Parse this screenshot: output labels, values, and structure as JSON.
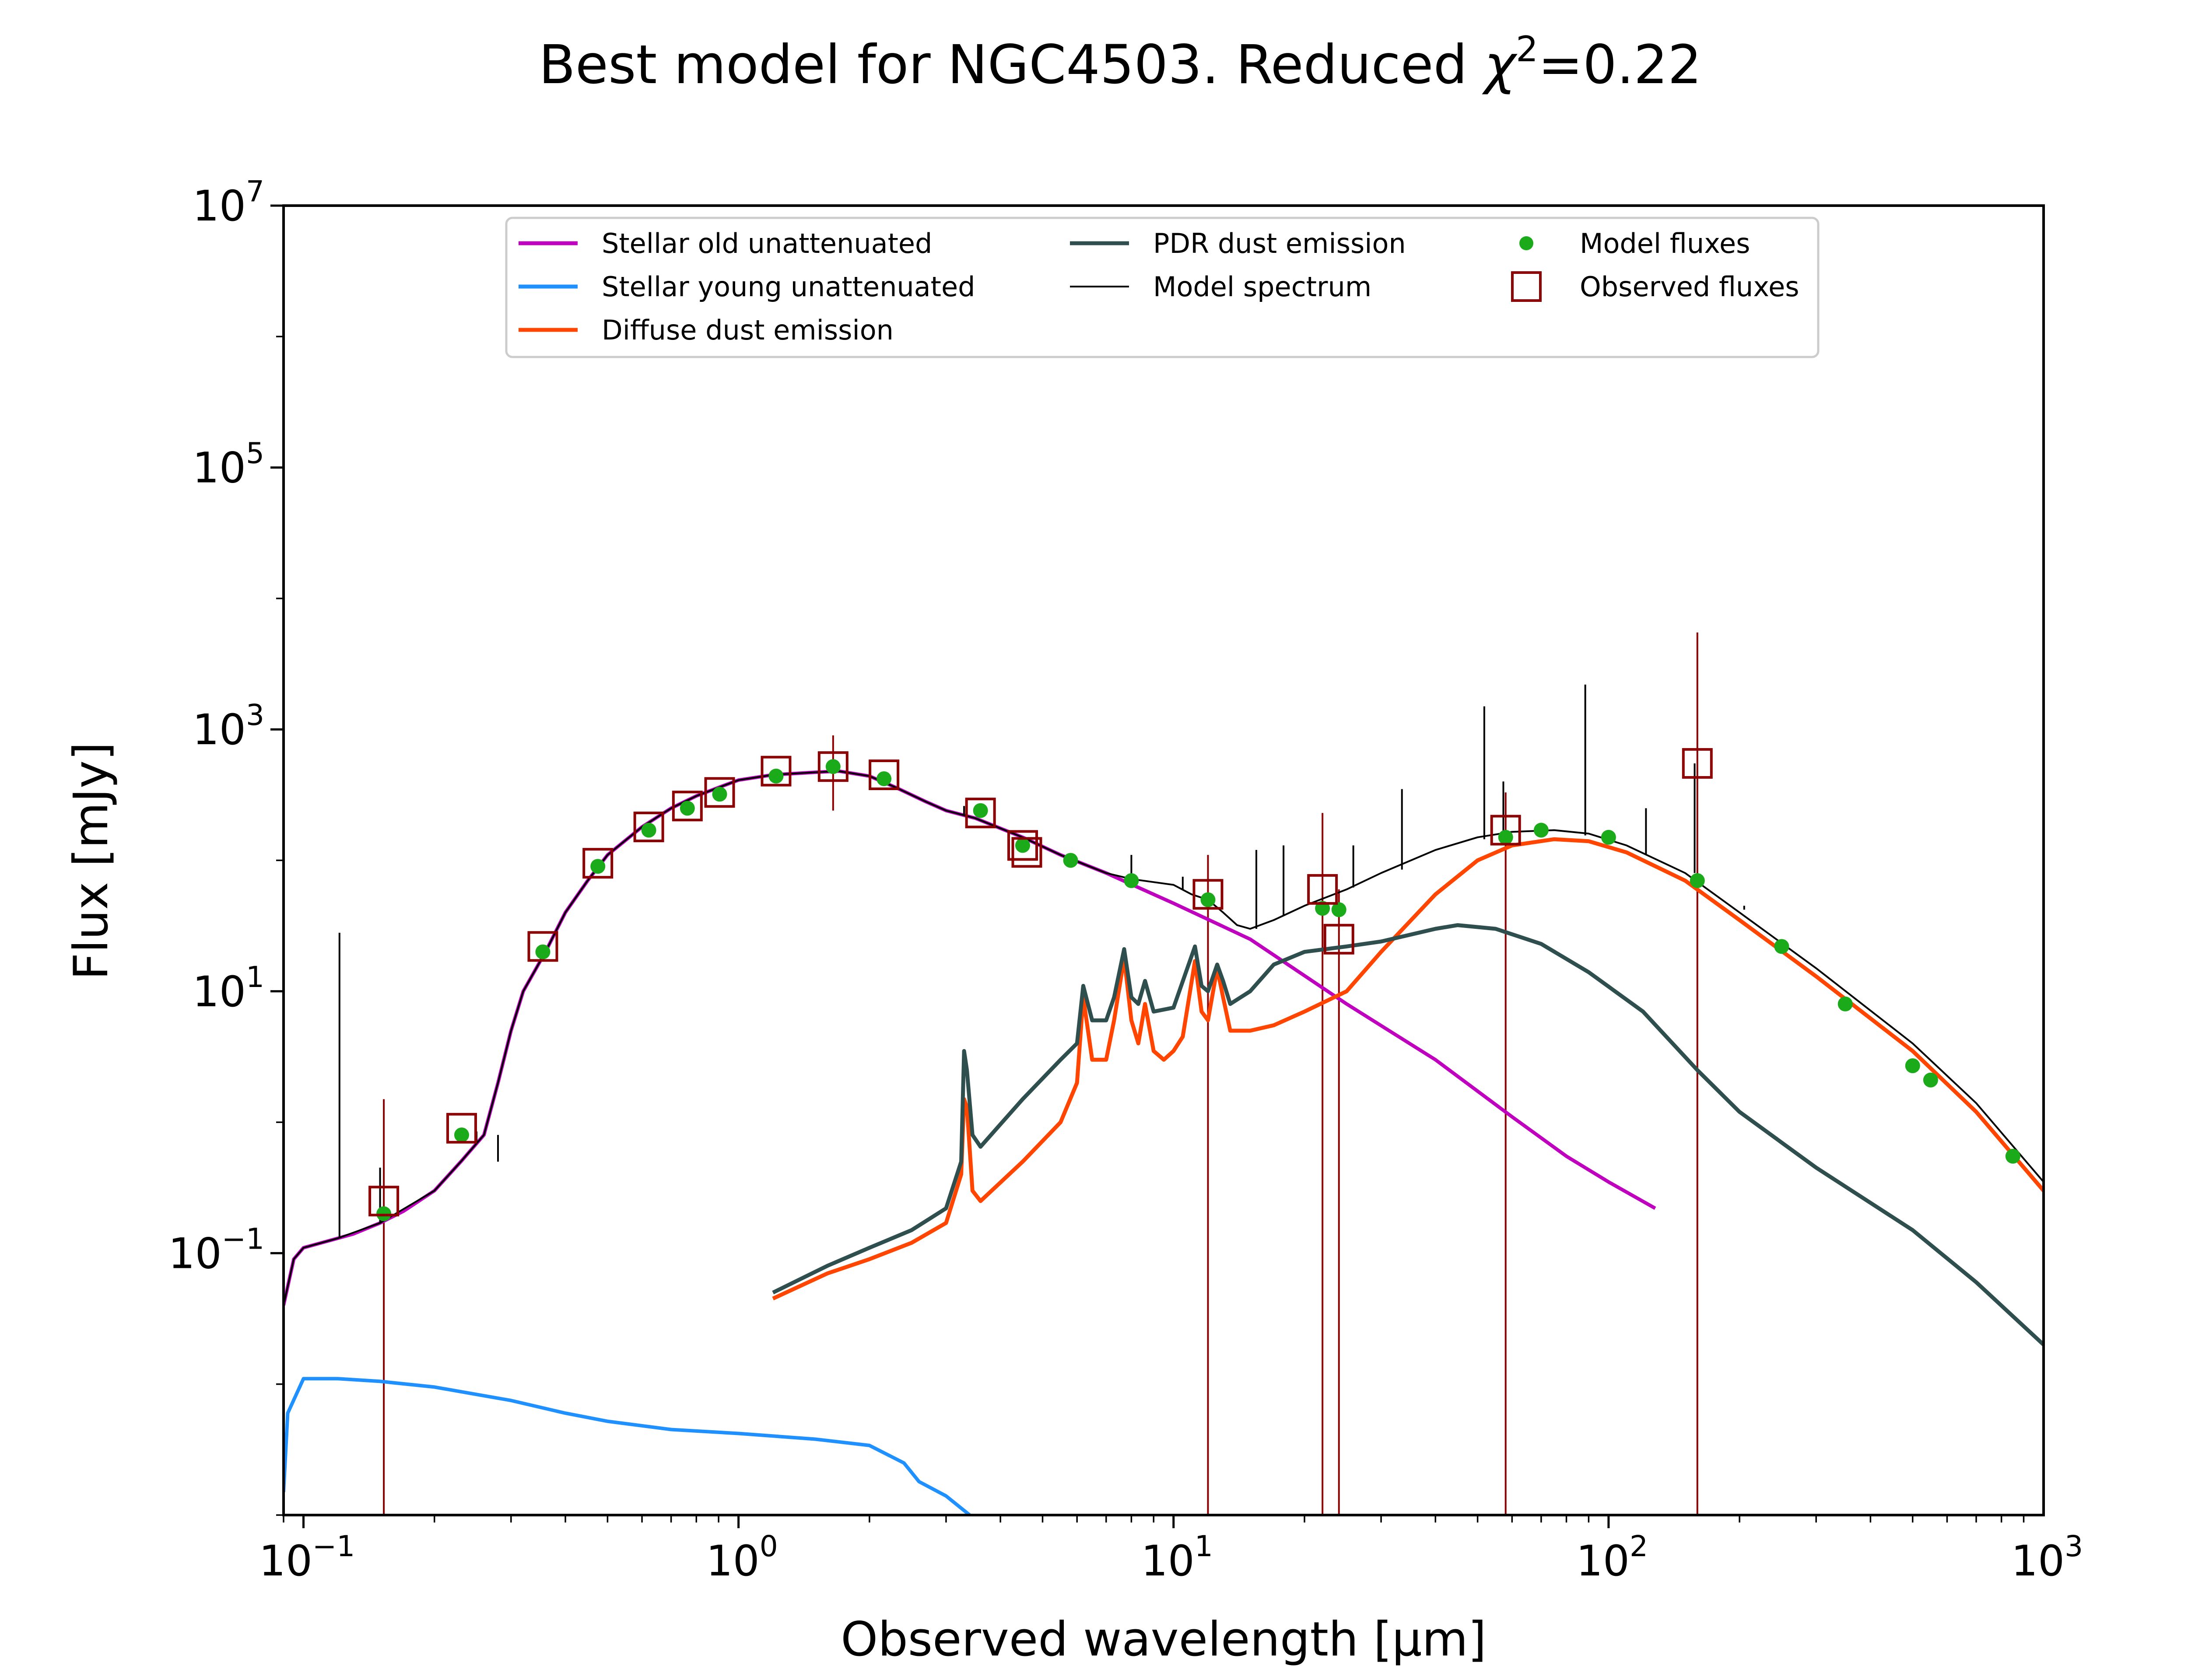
{
  "chart_data": {
    "type": "line",
    "title": "Best model for NGC4503. Reduced χ²=0.22",
    "title_parts": {
      "prefix": "Best model for NGC4503. Reduced ",
      "chi": "χ",
      "sup": "2",
      "suffix": "=0.22"
    },
    "xlabel": "Observed wavelength [μm]",
    "ylabel": "Flux [mJy]",
    "xscale": "log",
    "yscale": "log",
    "xlim": [
      0.09,
      1000
    ],
    "ylim": [
      0.001,
      10000000
    ],
    "xticks": [
      {
        "value": 0.1,
        "base": "10",
        "exp": "−1"
      },
      {
        "value": 1,
        "base": "10",
        "exp": "0"
      },
      {
        "value": 10,
        "base": "10",
        "exp": "1"
      },
      {
        "value": 100,
        "base": "10",
        "exp": "2"
      },
      {
        "value": 1000,
        "base": "10",
        "exp": "3"
      }
    ],
    "yticks": [
      {
        "value": 0.1,
        "base": "10",
        "exp": "−1"
      },
      {
        "value": 10,
        "base": "10",
        "exp": "1"
      },
      {
        "value": 1000,
        "base": "10",
        "exp": "3"
      },
      {
        "value": 100000,
        "base": "10",
        "exp": "5"
      },
      {
        "value": 10000000,
        "base": "10",
        "exp": "7"
      }
    ],
    "legend_position": "top-center",
    "legend": [
      {
        "key": "old",
        "label": "Stellar old unattenuated",
        "kind": "line"
      },
      {
        "key": "young",
        "label": "Stellar young unattenuated",
        "kind": "line"
      },
      {
        "key": "diffuse",
        "label": "Diffuse dust emission",
        "kind": "line"
      },
      {
        "key": "pdr",
        "label": "PDR dust emission",
        "kind": "line"
      },
      {
        "key": "model",
        "label": "Model spectrum",
        "kind": "line"
      },
      {
        "key": "modelfluxes",
        "label": "Model fluxes",
        "kind": "dot"
      },
      {
        "key": "observed",
        "label": "Observed fluxes",
        "kind": "square"
      }
    ],
    "colors": {
      "old": "#bf00bf",
      "young": "#1e90ff",
      "diffuse": "#ff4500",
      "pdr": "#2f4f4f",
      "model": "#000000",
      "modelfluxes": "#1aaa1a",
      "observed": "#8b0000"
    },
    "series": [
      {
        "key": "old",
        "name": "Stellar old unattenuated",
        "points": [
          [
            0.09,
            0.04
          ],
          [
            0.095,
            0.09
          ],
          [
            0.1,
            0.11
          ],
          [
            0.11,
            0.12
          ],
          [
            0.12,
            0.13
          ],
          [
            0.13,
            0.14
          ],
          [
            0.15,
            0.17
          ],
          [
            0.17,
            0.21
          ],
          [
            0.2,
            0.3
          ],
          [
            0.23,
            0.5
          ],
          [
            0.26,
            0.8
          ],
          [
            0.28,
            2
          ],
          [
            0.3,
            5
          ],
          [
            0.32,
            10
          ],
          [
            0.36,
            20
          ],
          [
            0.4,
            40
          ],
          [
            0.45,
            70
          ],
          [
            0.5,
            110
          ],
          [
            0.6,
            180
          ],
          [
            0.7,
            250
          ],
          [
            0.8,
            310
          ],
          [
            0.9,
            360
          ],
          [
            1.0,
            410
          ],
          [
            1.2,
            450
          ],
          [
            1.5,
            470
          ],
          [
            1.7,
            480
          ],
          [
            2.0,
            440
          ],
          [
            2.3,
            360
          ],
          [
            2.7,
            280
          ],
          [
            3.0,
            240
          ],
          [
            3.5,
            210
          ],
          [
            4.5,
            150
          ],
          [
            5.5,
            110
          ],
          [
            7,
            80
          ],
          [
            10,
            47
          ],
          [
            15,
            25
          ],
          [
            25,
            8
          ],
          [
            40,
            3
          ],
          [
            60,
            1.1
          ],
          [
            80,
            0.55
          ],
          [
            100,
            0.35
          ],
          [
            128,
            0.22
          ]
        ]
      },
      {
        "key": "young",
        "name": "Stellar young unattenuated",
        "points": [
          [
            0.09,
            0.0015
          ],
          [
            0.092,
            0.006
          ],
          [
            0.1,
            0.011
          ],
          [
            0.12,
            0.011
          ],
          [
            0.15,
            0.0105
          ],
          [
            0.2,
            0.0095
          ],
          [
            0.3,
            0.0075
          ],
          [
            0.4,
            0.006
          ],
          [
            0.5,
            0.0052
          ],
          [
            0.7,
            0.0045
          ],
          [
            1.0,
            0.0042
          ],
          [
            1.5,
            0.0038
          ],
          [
            2.0,
            0.0034
          ],
          [
            2.4,
            0.0025
          ],
          [
            2.6,
            0.0018
          ],
          [
            3.0,
            0.0014
          ],
          [
            3.4,
            0.001
          ]
        ]
      },
      {
        "key": "diffuse",
        "name": "Diffuse dust emission",
        "points": [
          [
            1.2,
            0.045
          ],
          [
            1.6,
            0.07
          ],
          [
            2.0,
            0.09
          ],
          [
            2.5,
            0.12
          ],
          [
            3.0,
            0.17
          ],
          [
            3.25,
            0.4
          ],
          [
            3.3,
            1.5
          ],
          [
            3.35,
            1.3
          ],
          [
            3.45,
            0.3
          ],
          [
            3.6,
            0.25
          ],
          [
            4.5,
            0.5
          ],
          [
            5.5,
            1.0
          ],
          [
            6.0,
            2.0
          ],
          [
            6.2,
            9
          ],
          [
            6.5,
            3.0
          ],
          [
            7.0,
            3.0
          ],
          [
            7.3,
            6
          ],
          [
            7.7,
            18
          ],
          [
            8.0,
            6
          ],
          [
            8.3,
            4
          ],
          [
            8.6,
            8
          ],
          [
            9,
            3.5
          ],
          [
            9.5,
            3.0
          ],
          [
            10,
            3.5
          ],
          [
            10.5,
            4.5
          ],
          [
            11.2,
            17
          ],
          [
            11.6,
            7
          ],
          [
            12,
            6
          ],
          [
            12.6,
            15
          ],
          [
            13,
            9
          ],
          [
            13.5,
            5
          ],
          [
            15,
            5
          ],
          [
            17,
            5.5
          ],
          [
            20,
            7
          ],
          [
            25,
            10
          ],
          [
            30,
            20
          ],
          [
            40,
            55
          ],
          [
            50,
            100
          ],
          [
            60,
            130
          ],
          [
            75,
            145
          ],
          [
            90,
            140
          ],
          [
            110,
            115
          ],
          [
            150,
            70
          ],
          [
            200,
            35
          ],
          [
            300,
            13
          ],
          [
            500,
            3.5
          ],
          [
            700,
            1.2
          ],
          [
            1000,
            0.3
          ]
        ]
      },
      {
        "key": "pdr",
        "name": "PDR dust emission",
        "points": [
          [
            1.2,
            0.05
          ],
          [
            1.6,
            0.08
          ],
          [
            2.0,
            0.11
          ],
          [
            2.5,
            0.15
          ],
          [
            3.0,
            0.22
          ],
          [
            3.25,
            0.5
          ],
          [
            3.3,
            3.5
          ],
          [
            3.35,
            2.5
          ],
          [
            3.45,
            0.8
          ],
          [
            3.6,
            0.65
          ],
          [
            4.5,
            1.5
          ],
          [
            5.5,
            3
          ],
          [
            6.0,
            4
          ],
          [
            6.2,
            11
          ],
          [
            6.5,
            6
          ],
          [
            7.0,
            6
          ],
          [
            7.3,
            9
          ],
          [
            7.7,
            21
          ],
          [
            8.0,
            9
          ],
          [
            8.3,
            8
          ],
          [
            8.6,
            12
          ],
          [
            9,
            7
          ],
          [
            10,
            7.5
          ],
          [
            11.2,
            22
          ],
          [
            11.6,
            11
          ],
          [
            12,
            10
          ],
          [
            12.6,
            16
          ],
          [
            13,
            12
          ],
          [
            13.5,
            8
          ],
          [
            15,
            10
          ],
          [
            17,
            16
          ],
          [
            20,
            20
          ],
          [
            25,
            22
          ],
          [
            30,
            24
          ],
          [
            40,
            30
          ],
          [
            45,
            32
          ],
          [
            55,
            30
          ],
          [
            70,
            23
          ],
          [
            90,
            14
          ],
          [
            120,
            7
          ],
          [
            160,
            2.5
          ],
          [
            200,
            1.2
          ],
          [
            300,
            0.45
          ],
          [
            500,
            0.15
          ],
          [
            700,
            0.06
          ],
          [
            1000,
            0.02
          ]
        ]
      },
      {
        "key": "model",
        "name": "Model spectrum",
        "points": [
          [
            0.09,
            0.04
          ],
          [
            0.095,
            0.09
          ],
          [
            0.1,
            0.11
          ],
          [
            0.12,
            0.13
          ],
          [
            0.15,
            0.17
          ],
          [
            0.2,
            0.3
          ],
          [
            0.23,
            0.5
          ],
          [
            0.26,
            0.8
          ],
          [
            0.28,
            2
          ],
          [
            0.3,
            5
          ],
          [
            0.32,
            10
          ],
          [
            0.36,
            20
          ],
          [
            0.4,
            40
          ],
          [
            0.45,
            70
          ],
          [
            0.5,
            110
          ],
          [
            0.6,
            180
          ],
          [
            0.7,
            250
          ],
          [
            0.8,
            310
          ],
          [
            0.9,
            360
          ],
          [
            1.0,
            410
          ],
          [
            1.2,
            450
          ],
          [
            1.5,
            470
          ],
          [
            1.7,
            480
          ],
          [
            2.0,
            440
          ],
          [
            2.3,
            360
          ],
          [
            2.7,
            280
          ],
          [
            3.0,
            240
          ],
          [
            3.5,
            210
          ],
          [
            4.5,
            150
          ],
          [
            5.5,
            110
          ],
          [
            7,
            80
          ],
          [
            8,
            72
          ],
          [
            10,
            65
          ],
          [
            11,
            55
          ],
          [
            12,
            50
          ],
          [
            13,
            40
          ],
          [
            14,
            32
          ],
          [
            15,
            30
          ],
          [
            17,
            35
          ],
          [
            20,
            45
          ],
          [
            25,
            60
          ],
          [
            30,
            80
          ],
          [
            40,
            120
          ],
          [
            50,
            150
          ],
          [
            60,
            165
          ],
          [
            75,
            170
          ],
          [
            90,
            160
          ],
          [
            110,
            130
          ],
          [
            150,
            80
          ],
          [
            200,
            40
          ],
          [
            300,
            15
          ],
          [
            500,
            4
          ],
          [
            700,
            1.4
          ],
          [
            1000,
            0.35
          ]
        ]
      },
      {
        "key": "modelfluxes",
        "name": "Model fluxes",
        "points": [
          [
            0.153,
            0.2
          ],
          [
            0.231,
            0.8
          ],
          [
            0.355,
            20
          ],
          [
            0.475,
            90
          ],
          [
            0.622,
            170
          ],
          [
            0.763,
            250
          ],
          [
            0.905,
            320
          ],
          [
            1.22,
            440
          ],
          [
            1.65,
            520
          ],
          [
            2.16,
            420
          ],
          [
            3.6,
            240
          ],
          [
            4.5,
            130
          ],
          [
            5.8,
            100
          ],
          [
            8.0,
            70
          ],
          [
            12,
            50
          ],
          [
            22,
            43
          ],
          [
            24,
            42
          ],
          [
            58,
            150
          ],
          [
            70,
            170
          ],
          [
            100,
            150
          ],
          [
            160,
            70
          ],
          [
            250,
            22
          ],
          [
            350,
            8
          ],
          [
            500,
            2.7
          ],
          [
            550,
            2.1
          ],
          [
            850,
            0.55
          ]
        ]
      },
      {
        "key": "observed",
        "name": "Observed fluxes",
        "points": [
          [
            0.153,
            0.25
          ],
          [
            0.231,
            0.9
          ],
          [
            0.355,
            22
          ],
          [
            0.475,
            95
          ],
          [
            0.622,
            180
          ],
          [
            0.763,
            260
          ],
          [
            0.905,
            330
          ],
          [
            1.22,
            480
          ],
          [
            1.65,
            520
          ],
          [
            2.16,
            450
          ],
          [
            3.6,
            230
          ],
          [
            4.5,
            130
          ],
          [
            4.6,
            115
          ],
          [
            12,
            55
          ],
          [
            22,
            60
          ],
          [
            24,
            25
          ],
          [
            58,
            170
          ],
          [
            160,
            550
          ]
        ]
      }
    ],
    "error_bars": [
      {
        "x": 0.153,
        "low": 0.001,
        "high": 1.5
      },
      {
        "x": 1.65,
        "low": 240,
        "high": 900
      },
      {
        "x": 12,
        "low": 0.001,
        "high": 110
      },
      {
        "x": 22,
        "low": 0.001,
        "high": 230
      },
      {
        "x": 24,
        "low": 0.001,
        "high": 60
      },
      {
        "x": 58,
        "low": 0.001,
        "high": 330
      },
      {
        "x": 160,
        "low": 0.001,
        "high": 5500
      }
    ],
    "emission_lines": [
      {
        "x": 0.121,
        "base": 0.13,
        "top": 28
      },
      {
        "x": 0.15,
        "base": 0.17,
        "top": 0.45
      },
      {
        "x": 0.25,
        "base": 0.7,
        "top": 0.85
      },
      {
        "x": 0.28,
        "base": 0.8,
        "top": 0.5
      },
      {
        "x": 3.3,
        "base": 220,
        "top": 260
      },
      {
        "x": 8.0,
        "base": 72,
        "top": 110
      },
      {
        "x": 10.5,
        "base": 60,
        "top": 75
      },
      {
        "x": 15.5,
        "base": 30,
        "top": 120
      },
      {
        "x": 17.9,
        "base": 38,
        "top": 130
      },
      {
        "x": 25.9,
        "base": 62,
        "top": 130
      },
      {
        "x": 33.5,
        "base": 85,
        "top": 350
      },
      {
        "x": 51.8,
        "base": 145,
        "top": 1500
      },
      {
        "x": 57.3,
        "base": 155,
        "top": 400
      },
      {
        "x": 88.4,
        "base": 155,
        "top": 2200
      },
      {
        "x": 121.9,
        "base": 110,
        "top": 250
      },
      {
        "x": 157.7,
        "base": 80,
        "top": 550
      },
      {
        "x": 205,
        "base": 42,
        "top": 45
      }
    ]
  }
}
